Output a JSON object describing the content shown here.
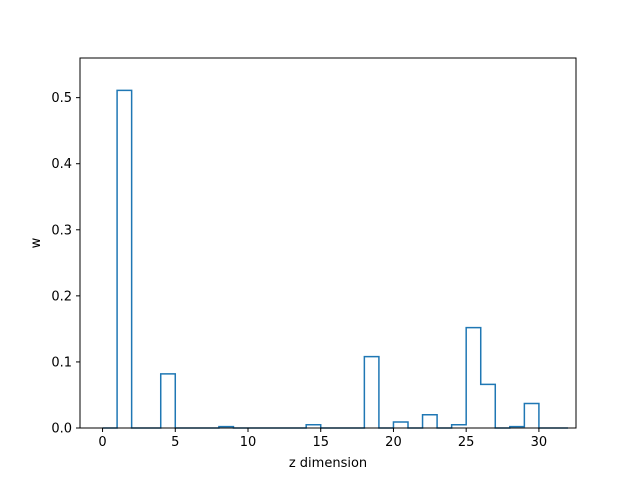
{
  "chart_data": {
    "type": "bar",
    "style": "step-outline",
    "title": "",
    "xlabel": "z dimension",
    "ylabel": "w",
    "xlim": [
      -1.55,
      32.55
    ],
    "ylim": [
      0,
      0.56
    ],
    "grid": false,
    "legend": "none",
    "color": "#1f77b4",
    "x": [
      0,
      1,
      2,
      3,
      4,
      5,
      6,
      7,
      8,
      9,
      10,
      11,
      12,
      13,
      14,
      15,
      16,
      17,
      18,
      19,
      20,
      21,
      22,
      23,
      24,
      25,
      26,
      27,
      28,
      29,
      30,
      31
    ],
    "values": [
      0.0,
      0.511,
      0.0,
      0.0,
      0.082,
      0.0,
      0.0,
      0.0,
      0.002,
      0.0,
      0.0,
      0.0,
      0.0,
      0.0,
      0.005,
      0.0,
      0.0,
      0.0,
      0.108,
      0.0,
      0.009,
      0.0,
      0.02,
      0.0,
      0.005,
      0.152,
      0.066,
      0.0,
      0.002,
      0.037,
      0.0,
      0.0
    ],
    "xticks": [
      0,
      5,
      10,
      15,
      20,
      25,
      30
    ],
    "yticks": [
      0.0,
      0.1,
      0.2,
      0.3,
      0.4,
      0.5
    ],
    "xtick_labels": [
      "0",
      "5",
      "10",
      "15",
      "20",
      "25",
      "30"
    ],
    "ytick_labels": [
      "0.0",
      "0.1",
      "0.2",
      "0.3",
      "0.4",
      "0.5"
    ]
  }
}
